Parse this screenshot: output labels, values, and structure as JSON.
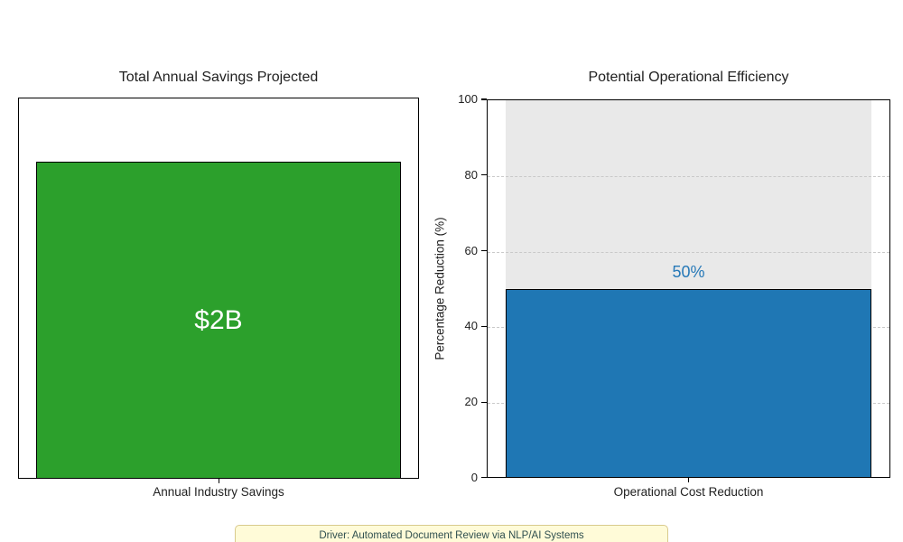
{
  "figure": {
    "background": "#ffffff",
    "footer_note": {
      "text": "Driver: Automated Document Review via NLP/AI Systems",
      "bg_color": "#fffbd8",
      "border_color": "#d9ca8d",
      "text_color": "#2f4f4f"
    }
  },
  "chart_data": [
    {
      "type": "bar",
      "title": "Total Annual Savings Projected",
      "categories": [
        "Annual Industry Savings"
      ],
      "values": [
        2
      ],
      "bar_labels": [
        "$2B"
      ],
      "ylim": [
        0,
        2.4
      ],
      "yticks": [],
      "grid": false,
      "bar_color": "#2ca02c",
      "bar_edge_color": "#000000",
      "bar_label_color": "#ffffff"
    },
    {
      "type": "bar",
      "title": "Potential Operational Efficiency",
      "categories": [
        "Operational Cost Reduction"
      ],
      "values": [
        50
      ],
      "bar_labels": [
        "50%"
      ],
      "ylabel": "Percentage Reduction (%)",
      "ylim": [
        0,
        100
      ],
      "yticks": [
        0,
        20,
        40,
        60,
        80,
        100
      ],
      "grid": "dashed-horizontal",
      "background_bar_value": 100,
      "background_bar_color": "#e9e9e9",
      "bar_color": "#1f77b4",
      "bar_edge_color": "#000000",
      "bar_label_color": "#2679b8"
    }
  ]
}
